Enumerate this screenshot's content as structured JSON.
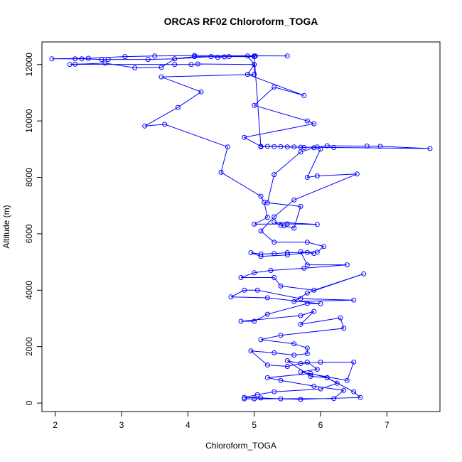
{
  "chart_data": {
    "type": "line",
    "title": "ORCAS RF02 Chloroform_TOGA",
    "xlabel": "Chloroform_TOGA",
    "ylabel": "Altitude (m)",
    "xlim": [
      1.8,
      7.8
    ],
    "ylim": [
      -300,
      12800
    ],
    "x_ticks": [
      2,
      3,
      4,
      5,
      6,
      7
    ],
    "y_ticks": [
      0,
      2000,
      4000,
      6000,
      8000,
      10000,
      12000
    ],
    "grid": false,
    "legend": "none",
    "series": [
      {
        "color": "#0000ff",
        "markers": "open-circle",
        "points": [
          [
            5.5,
            12300
          ],
          [
            4.1,
            12320
          ],
          [
            3.5,
            12300
          ],
          [
            3.05,
            12280
          ],
          [
            2.5,
            12220
          ],
          [
            1.95,
            12200
          ],
          [
            2.3,
            12200
          ],
          [
            2.4,
            12200
          ],
          [
            2.7,
            12180
          ],
          [
            2.8,
            12180
          ],
          [
            3.4,
            12180
          ],
          [
            3.8,
            12200
          ],
          [
            4.35,
            12280
          ],
          [
            4.45,
            12250
          ],
          [
            4.55,
            12270
          ],
          [
            4.62,
            12280
          ],
          [
            5.0,
            12300
          ],
          [
            5.02,
            12300
          ],
          [
            5.0,
            12280
          ],
          [
            4.1,
            12280
          ],
          [
            3.8,
            12200
          ],
          [
            3.6,
            11900
          ],
          [
            3.2,
            11880
          ],
          [
            2.75,
            12050
          ],
          [
            2.22,
            12000
          ],
          [
            2.3,
            12010
          ],
          [
            3.8,
            12000
          ],
          [
            4.05,
            12000
          ],
          [
            4.15,
            12020
          ],
          [
            5.0,
            12000
          ],
          [
            5.0,
            11650
          ],
          [
            3.6,
            11560
          ],
          [
            4.2,
            11030
          ],
          [
            3.85,
            10480
          ],
          [
            3.35,
            9820
          ],
          [
            3.65,
            9880
          ],
          [
            4.6,
            9080
          ],
          [
            4.5,
            8180
          ],
          [
            5.1,
            7330
          ],
          [
            5.15,
            7120
          ],
          [
            5.2,
            6580
          ],
          [
            5.0,
            6340
          ],
          [
            5.5,
            6350
          ],
          [
            5.95,
            6330
          ],
          [
            5.3,
            6420
          ],
          [
            5.4,
            6300
          ],
          [
            5.45,
            6280
          ],
          [
            5.6,
            6200
          ],
          [
            5.7,
            6970
          ],
          [
            5.2,
            7100
          ],
          [
            5.3,
            8100
          ],
          [
            5.7,
            8900
          ],
          [
            5.9,
            9050
          ],
          [
            6.1,
            9120
          ],
          [
            6.7,
            9110
          ],
          [
            6.9,
            9100
          ],
          [
            7.65,
            9020
          ],
          [
            6.2,
            9060
          ],
          [
            5.7,
            9070
          ],
          [
            5.5,
            9080
          ],
          [
            5.3,
            9090
          ],
          [
            5.1,
            9100
          ],
          [
            4.85,
            9420
          ],
          [
            5.9,
            9900
          ],
          [
            5.8,
            10000
          ],
          [
            5.0,
            10550
          ],
          [
            5.3,
            11200
          ],
          [
            5.75,
            10900
          ],
          [
            4.9,
            11650
          ],
          [
            5.0,
            12000
          ],
          [
            4.9,
            12300
          ],
          [
            5.0,
            12290
          ],
          [
            5.1,
            9080
          ],
          [
            5.2,
            9100
          ],
          [
            5.4,
            9090
          ],
          [
            5.6,
            9080
          ],
          [
            5.75,
            9060
          ],
          [
            5.95,
            9080
          ],
          [
            6.0,
            9000
          ],
          [
            5.8,
            8000
          ],
          [
            5.95,
            8050
          ],
          [
            6.55,
            8120
          ],
          [
            5.6,
            7200
          ],
          [
            5.3,
            6600
          ],
          [
            5.1,
            6100
          ],
          [
            5.3,
            5700
          ],
          [
            5.8,
            5700
          ],
          [
            6.05,
            5550
          ],
          [
            5.95,
            5350
          ],
          [
            5.5,
            5330
          ],
          [
            5.3,
            5300
          ],
          [
            5.1,
            5280
          ],
          [
            4.95,
            5330
          ],
          [
            5.1,
            5200
          ],
          [
            5.5,
            5250
          ],
          [
            5.8,
            5340
          ],
          [
            5.9,
            5300
          ],
          [
            5.7,
            5360
          ],
          [
            5.8,
            4900
          ],
          [
            6.4,
            4900
          ],
          [
            5.75,
            4780
          ],
          [
            5.25,
            4700
          ],
          [
            5.0,
            4620
          ],
          [
            4.8,
            4450
          ],
          [
            5.3,
            4450
          ],
          [
            5.4,
            4150
          ],
          [
            5.9,
            4000
          ],
          [
            6.65,
            4580
          ],
          [
            5.8,
            3900
          ],
          [
            5.6,
            3600
          ],
          [
            6.5,
            3650
          ],
          [
            5.7,
            3700
          ],
          [
            5.05,
            4000
          ],
          [
            4.85,
            4000
          ],
          [
            4.65,
            3760
          ],
          [
            5.2,
            3730
          ],
          [
            6.0,
            3520
          ],
          [
            5.8,
            3530
          ],
          [
            5.2,
            3150
          ],
          [
            5.0,
            2900
          ],
          [
            4.8,
            2900
          ],
          [
            5.7,
            3100
          ],
          [
            5.9,
            3250
          ],
          [
            5.7,
            2790
          ],
          [
            6.3,
            3020
          ],
          [
            6.35,
            2650
          ],
          [
            5.4,
            2400
          ],
          [
            5.1,
            2250
          ],
          [
            5.6,
            2100
          ],
          [
            5.8,
            1950
          ],
          [
            5.8,
            1750
          ],
          [
            5.6,
            1700
          ],
          [
            5.3,
            1780
          ],
          [
            4.95,
            1850
          ],
          [
            5.2,
            1350
          ],
          [
            5.5,
            1300
          ],
          [
            5.8,
            1450
          ],
          [
            5.95,
            1200
          ],
          [
            5.7,
            1100
          ],
          [
            6.4,
            800
          ],
          [
            6.5,
            1450
          ],
          [
            6.0,
            1450
          ],
          [
            5.7,
            1400
          ],
          [
            5.5,
            1500
          ],
          [
            5.85,
            950
          ],
          [
            6.1,
            900
          ],
          [
            6.25,
            700
          ],
          [
            6.0,
            500
          ],
          [
            5.3,
            400
          ],
          [
            5.05,
            300
          ],
          [
            4.85,
            200
          ],
          [
            5.1,
            180
          ],
          [
            5.4,
            150
          ],
          [
            5.7,
            130
          ],
          [
            6.6,
            200
          ],
          [
            6.5,
            400
          ],
          [
            6.1,
            900
          ],
          [
            5.85,
            1050
          ],
          [
            5.2,
            900
          ],
          [
            5.4,
            800
          ],
          [
            5.9,
            600
          ],
          [
            6.35,
            450
          ],
          [
            6.2,
            160
          ],
          [
            5.0,
            150
          ],
          [
            4.85,
            150
          ]
        ]
      }
    ]
  }
}
